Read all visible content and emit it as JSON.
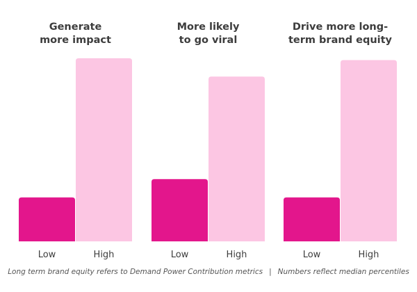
{
  "chart_data": {
    "type": "bar",
    "panels": [
      {
        "title_lines": [
          "Generate",
          "more impact"
        ],
        "categories": [
          "Low",
          "High"
        ],
        "values": [
          24,
          100
        ]
      },
      {
        "title_lines": [
          "More likely",
          "to go viral"
        ],
        "categories": [
          "Low",
          "High"
        ],
        "values": [
          34,
          90
        ]
      },
      {
        "title_lines": [
          "Drive more long-",
          "term brand equity"
        ],
        "categories": [
          "Low",
          "High"
        ],
        "values": [
          24,
          99
        ]
      }
    ],
    "ylim": [
      0,
      100
    ],
    "grid": false,
    "legend": "none",
    "colors": {
      "Low": "#e3168c",
      "High": "#fcc6e3"
    }
  },
  "footnote": {
    "left": "Long term brand equity refers to Demand Power Contribution metrics",
    "separator": "|",
    "right": "Numbers reflect median percentiles"
  }
}
